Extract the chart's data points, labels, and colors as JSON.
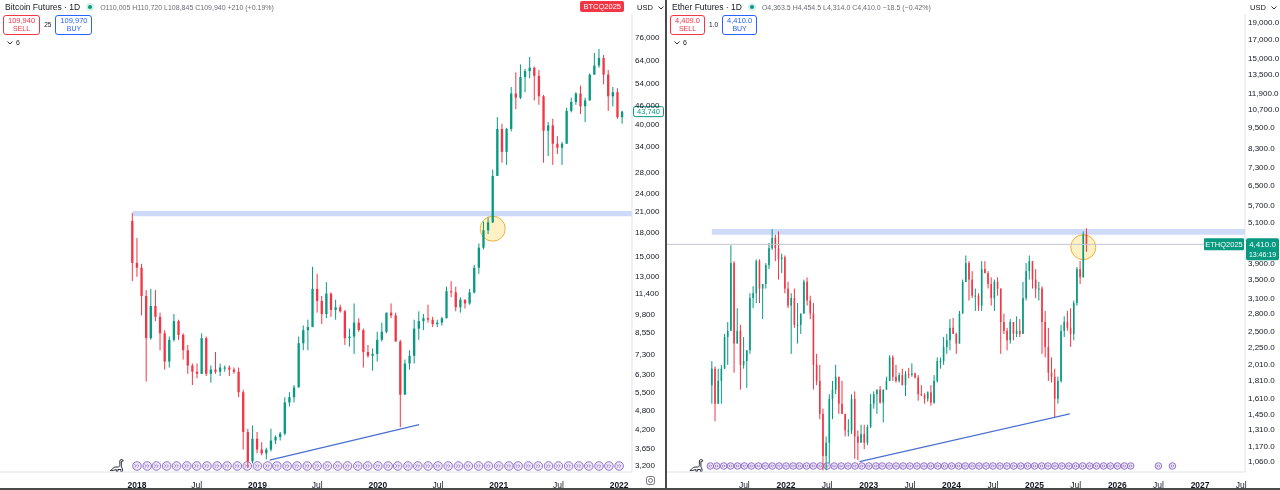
{
  "chart_data": [
    {
      "type": "candlestick",
      "title": "Bitcoin Futures · 1D",
      "subtitle": "O110,005 H110,720 L108,845 C109,940 +210 (+0.19%)",
      "ylabel": "USD",
      "x": [
        "2017-12-18",
        "2018-01-01",
        "2018-01-15",
        "2018-01-29",
        "2018-02-12",
        "2018-02-26",
        "2018-03-12",
        "2018-03-26",
        "2018-04-09",
        "2018-04-23",
        "2018-05-07",
        "2018-05-21",
        "2018-06-04",
        "2018-06-18",
        "2018-07-02",
        "2018-07-16",
        "2018-07-30",
        "2018-08-13",
        "2018-08-27",
        "2018-09-10",
        "2018-09-24",
        "2018-10-08",
        "2018-10-22",
        "2018-11-05",
        "2018-11-19",
        "2018-12-03",
        "2018-12-17",
        "2018-12-31",
        "2019-01-14",
        "2019-01-28",
        "2019-02-11",
        "2019-02-25",
        "2019-03-11",
        "2019-03-25",
        "2019-04-08",
        "2019-04-22",
        "2019-05-06",
        "2019-05-20",
        "2019-06-03",
        "2019-06-17",
        "2019-07-01",
        "2019-07-15",
        "2019-07-29",
        "2019-08-12",
        "2019-08-26",
        "2019-09-09",
        "2019-09-23",
        "2019-10-07",
        "2019-10-21",
        "2019-11-04",
        "2019-11-18",
        "2019-12-02",
        "2019-12-16",
        "2019-12-30",
        "2020-01-13",
        "2020-01-27",
        "2020-02-10",
        "2020-02-24",
        "2020-03-09",
        "2020-03-23",
        "2020-04-06",
        "2020-04-20",
        "2020-05-04",
        "2020-05-18",
        "2020-06-01",
        "2020-06-15",
        "2020-06-29",
        "2020-07-13",
        "2020-07-27",
        "2020-08-10",
        "2020-08-24",
        "2020-09-07",
        "2020-09-21",
        "2020-10-05",
        "2020-10-19",
        "2020-11-02",
        "2020-11-16",
        "2020-11-30",
        "2020-12-14",
        "2020-12-28",
        "2021-01-11",
        "2021-01-25",
        "2021-02-08",
        "2021-02-22",
        "2021-03-08",
        "2021-03-22",
        "2021-04-05",
        "2021-04-19",
        "2021-05-03",
        "2021-05-17",
        "2021-05-31",
        "2021-06-14",
        "2021-06-28",
        "2021-07-12",
        "2021-07-26",
        "2021-08-09",
        "2021-08-23",
        "2021-09-06",
        "2021-09-20",
        "2021-10-04",
        "2021-10-18",
        "2021-11-01",
        "2021-11-15",
        "2021-11-29",
        "2021-12-13",
        "2021-12-27",
        "2022-01-10"
      ],
      "ohlc": [
        [
          19500,
          20650,
          12500,
          14300
        ],
        [
          14300,
          17200,
          12900,
          13800
        ],
        [
          13800,
          14200,
          9700,
          11200
        ],
        [
          11200,
          11700,
          5950,
          8200
        ],
        [
          8200,
          11800,
          8100,
          10400
        ],
        [
          10400,
          11700,
          9300,
          9600
        ],
        [
          9600,
          9900,
          7500,
          8500
        ],
        [
          8500,
          8700,
          6500,
          6900
        ],
        [
          6900,
          8300,
          6600,
          8100
        ],
        [
          8100,
          9800,
          8000,
          9300
        ],
        [
          9300,
          9400,
          8100,
          8400
        ],
        [
          8400,
          8500,
          7000,
          7500
        ],
        [
          7500,
          7800,
          6300,
          6700
        ],
        [
          6700,
          6800,
          5800,
          6400
        ],
        [
          6400,
          6800,
          6100,
          6300
        ],
        [
          6300,
          8500,
          6300,
          8200
        ],
        [
          8200,
          8300,
          6200,
          6300
        ],
        [
          6300,
          6700,
          5900,
          6500
        ],
        [
          6500,
          7400,
          6300,
          6400
        ],
        [
          6400,
          6800,
          6200,
          6600
        ],
        [
          6600,
          6700,
          6400,
          6600
        ],
        [
          6600,
          6700,
          6200,
          6500
        ],
        [
          6500,
          6600,
          6300,
          6400
        ],
        [
          6400,
          6600,
          5300,
          5500
        ],
        [
          5500,
          5600,
          3600,
          4100
        ],
        [
          4100,
          4200,
          3150,
          3300
        ],
        [
          3300,
          4300,
          3250,
          3900
        ],
        [
          3900,
          4100,
          3500,
          3600
        ],
        [
          3600,
          3800,
          3450,
          3500
        ],
        [
          3500,
          3650,
          3350,
          3600
        ],
        [
          3600,
          4200,
          3550,
          3850
        ],
        [
          3850,
          4000,
          3750,
          3950
        ],
        [
          3950,
          4100,
          3850,
          4050
        ],
        [
          4050,
          5300,
          4000,
          5100
        ],
        [
          5100,
          5500,
          4950,
          5300
        ],
        [
          5300,
          5800,
          5100,
          5700
        ],
        [
          5700,
          8300,
          5700,
          7900
        ],
        [
          7900,
          9000,
          7500,
          8700
        ],
        [
          8700,
          9400,
          7500,
          8900
        ],
        [
          8900,
          13900,
          8900,
          11800
        ],
        [
          11800,
          13200,
          9900,
          10800
        ],
        [
          10800,
          11200,
          9100,
          9800
        ],
        [
          9800,
          12400,
          9500,
          11400
        ],
        [
          11400,
          11500,
          9600,
          10100
        ],
        [
          10100,
          10900,
          9400,
          10300
        ],
        [
          10300,
          10500,
          9900,
          10000
        ],
        [
          10000,
          10100,
          7800,
          8200
        ],
        [
          8200,
          8800,
          7700,
          8300
        ],
        [
          8300,
          10600,
          7300,
          9200
        ],
        [
          9200,
          9500,
          8600,
          8700
        ],
        [
          8700,
          8800,
          6600,
          7400
        ],
        [
          7400,
          7800,
          7100,
          7200
        ],
        [
          7200,
          7600,
          6450,
          7300
        ],
        [
          7300,
          8600,
          6900,
          8100
        ],
        [
          8100,
          9200,
          8000,
          8600
        ],
        [
          8600,
          9900,
          8500,
          9900
        ],
        [
          9900,
          10600,
          9500,
          9700
        ],
        [
          9700,
          9900,
          8000,
          8000
        ],
        [
          8000,
          8100,
          4250,
          5400
        ],
        [
          5400,
          7000,
          5400,
          6800
        ],
        [
          6800,
          7500,
          6500,
          7200
        ],
        [
          7200,
          9400,
          6800,
          8800
        ],
        [
          8800,
          10000,
          8100,
          9300
        ],
        [
          9300,
          9800,
          8700,
          9500
        ],
        [
          9500,
          10500,
          9200,
          9400
        ],
        [
          9400,
          9600,
          8900,
          9100
        ],
        [
          9100,
          9400,
          8900,
          9200
        ],
        [
          9200,
          9600,
          9000,
          9500
        ],
        [
          9500,
          12000,
          9500,
          11600
        ],
        [
          11600,
          12500,
          11100,
          11500
        ],
        [
          11500,
          12000,
          10000,
          10300
        ],
        [
          10300,
          11100,
          9900,
          10900
        ],
        [
          10900,
          10900,
          10200,
          10600
        ],
        [
          10600,
          11800,
          10500,
          11500
        ],
        [
          11500,
          14100,
          11400,
          13800
        ],
        [
          13800,
          16500,
          13200,
          16000
        ],
        [
          16000,
          19400,
          15800,
          18200
        ],
        [
          18200,
          20000,
          17700,
          19300
        ],
        [
          19300,
          28500,
          19200,
          27200
        ],
        [
          27200,
          42000,
          27200,
          38500
        ],
        [
          38500,
          40000,
          30000,
          32500
        ],
        [
          32500,
          38800,
          29500,
          38500
        ],
        [
          38500,
          52500,
          37800,
          50000
        ],
        [
          50000,
          58500,
          44500,
          48500
        ],
        [
          48500,
          62000,
          48000,
          56500
        ],
        [
          56500,
          60000,
          50500,
          59000
        ],
        [
          59000,
          65500,
          56000,
          60500
        ],
        [
          60500,
          61000,
          47500,
          57000
        ],
        [
          57000,
          59500,
          46000,
          49000
        ],
        [
          49000,
          49500,
          30000,
          38000
        ],
        [
          38000,
          40500,
          31500,
          39500
        ],
        [
          39500,
          41500,
          29500,
          34500
        ],
        [
          34500,
          36500,
          32000,
          33500
        ],
        [
          33500,
          35000,
          29500,
          34500
        ],
        [
          34500,
          45000,
          34500,
          44000
        ],
        [
          44000,
          48500,
          43500,
          47000
        ],
        [
          47000,
          50500,
          46000,
          50000
        ],
        [
          50000,
          53000,
          43000,
          45500
        ],
        [
          45500,
          48500,
          40500,
          47500
        ],
        [
          47500,
          58000,
          47500,
          57500
        ],
        [
          57500,
          67500,
          57500,
          61500
        ],
        [
          61500,
          69500,
          60500,
          65000
        ],
        [
          65000,
          66500,
          53500,
          57500
        ],
        [
          57500,
          59500,
          44000,
          49000
        ],
        [
          49000,
          52500,
          45500,
          50500
        ],
        [
          50500,
          52000,
          41500,
          42000
        ],
        [
          42000,
          44000,
          40000,
          43740
        ]
      ],
      "xlim": [
        "2016-11-12",
        "2022-02-09"
      ],
      "xticks": [
        {
          "value": "2018-01-01",
          "label": "2018"
        },
        {
          "value": "2018-07-01",
          "label": "Jul"
        },
        {
          "value": "2019-01-01",
          "label": "2019"
        },
        {
          "value": "2019-07-01",
          "label": "Jul"
        },
        {
          "value": "2020-01-01",
          "label": "2020"
        },
        {
          "value": "2020-07-01",
          "label": "Jul"
        },
        {
          "value": "2021-01-01",
          "label": "2021"
        },
        {
          "value": "2021-07-01",
          "label": "Jul"
        },
        {
          "value": "2022-01-01",
          "label": "2022"
        }
      ],
      "ylim": [
        3050,
        90000
      ],
      "yticks": [
        {
          "value": 3200,
          "label": "3,200"
        },
        {
          "value": 3650,
          "label": "3,650"
        },
        {
          "value": 4200,
          "label": "4,200"
        },
        {
          "value": 4800,
          "label": "4,800"
        },
        {
          "value": 5500,
          "label": "5,500"
        },
        {
          "value": 6300,
          "label": "6,300"
        },
        {
          "value": 7300,
          "label": "7,300"
        },
        {
          "value": 8550,
          "label": "8,550"
        },
        {
          "value": 9800,
          "label": "9,800"
        },
        {
          "value": 11400,
          "label": "11,400"
        },
        {
          "value": 13000,
          "label": "13,000"
        },
        {
          "value": 15000,
          "label": "15,000"
        },
        {
          "value": 18000,
          "label": "18,000"
        },
        {
          "value": 21000,
          "label": "21,000"
        },
        {
          "value": 24000,
          "label": "24,000"
        },
        {
          "value": 28000,
          "label": "28,000"
        },
        {
          "value": 34000,
          "label": "34,000"
        },
        {
          "value": 40000,
          "label": "40,000"
        },
        {
          "value": 46000,
          "label": "46,000"
        },
        {
          "value": 54000,
          "label": "54,000"
        },
        {
          "value": 64000,
          "label": "64,000"
        },
        {
          "value": 76000,
          "label": "76,000"
        }
      ],
      "log": true,
      "bands": [
        {
          "axis": "y",
          "from": 20200,
          "to": 21000,
          "color": "#c5d3f8"
        }
      ],
      "series": [
        {
          "type": "line",
          "x": [
            "2019-02-07",
            "2020-05-05"
          ],
          "values": [
            3330,
            4330
          ],
          "color": "#4a6fd1"
        }
      ],
      "annotations": [
        "109,940",
        "SELL",
        "25",
        "109,970",
        "BUY",
        "6",
        "BTCQ2025",
        {
          "text": "43,740",
          "y": 43740
        }
      ]
    },
    {
      "type": "candlestick",
      "title": "Ether Futures · 1D",
      "subtitle": "O4,363.5 H4,454.5 L4,314.0 C4,410.0 −18.5 (−0.42%)",
      "ylabel": "USD",
      "x": [
        "2021-02-08",
        "2021-02-22",
        "2021-03-08",
        "2021-03-22",
        "2021-04-05",
        "2021-04-19",
        "2021-05-03",
        "2021-05-17",
        "2021-05-31",
        "2021-06-14",
        "2021-06-28",
        "2021-07-12",
        "2021-07-26",
        "2021-08-09",
        "2021-08-23",
        "2021-09-06",
        "2021-09-20",
        "2021-10-04",
        "2021-10-18",
        "2021-11-01",
        "2021-11-15",
        "2021-11-29",
        "2021-12-13",
        "2021-12-27",
        "2022-01-10",
        "2022-01-24",
        "2022-02-07",
        "2022-02-21",
        "2022-03-07",
        "2022-03-21",
        "2022-04-04",
        "2022-04-18",
        "2022-05-02",
        "2022-05-16",
        "2022-05-30",
        "2022-06-13",
        "2022-06-27",
        "2022-07-11",
        "2022-07-25",
        "2022-08-08",
        "2022-08-22",
        "2022-09-05",
        "2022-09-19",
        "2022-10-03",
        "2022-10-17",
        "2022-10-31",
        "2022-11-14",
        "2022-11-28",
        "2022-12-12",
        "2022-12-26",
        "2023-01-09",
        "2023-01-23",
        "2023-02-06",
        "2023-02-20",
        "2023-03-06",
        "2023-03-20",
        "2023-04-03",
        "2023-04-17",
        "2023-05-01",
        "2023-05-15",
        "2023-05-29",
        "2023-06-12",
        "2023-06-26",
        "2023-07-10",
        "2023-07-24",
        "2023-08-07",
        "2023-08-21",
        "2023-09-04",
        "2023-09-18",
        "2023-10-02",
        "2023-10-16",
        "2023-10-30",
        "2023-11-13",
        "2023-11-27",
        "2023-12-11",
        "2023-12-25",
        "2024-01-08",
        "2024-01-22",
        "2024-02-05",
        "2024-02-19",
        "2024-03-04",
        "2024-03-18",
        "2024-04-01",
        "2024-04-15",
        "2024-04-29",
        "2024-05-13",
        "2024-05-27",
        "2024-06-10",
        "2024-06-24",
        "2024-07-08",
        "2024-07-22",
        "2024-08-05",
        "2024-08-19",
        "2024-09-02",
        "2024-09-16",
        "2024-09-30",
        "2024-10-14",
        "2024-10-28",
        "2024-11-11",
        "2024-11-25",
        "2024-12-09",
        "2024-12-23",
        "2025-01-06",
        "2025-01-20",
        "2025-02-03",
        "2025-02-17",
        "2025-03-03",
        "2025-03-17",
        "2025-03-31",
        "2025-04-14",
        "2025-04-28",
        "2025-05-12",
        "2025-05-26",
        "2025-06-09",
        "2025-06-23",
        "2025-07-07",
        "2025-07-21",
        "2025-08-04",
        "2025-08-18"
      ],
      "ohlc": [
        [
          1750,
          2050,
          1550,
          1950
        ],
        [
          1950,
          1980,
          1380,
          1550
        ],
        [
          1550,
          1950,
          1550,
          1800
        ],
        [
          1800,
          2000,
          1550,
          1950
        ],
        [
          1950,
          2450,
          1950,
          2400
        ],
        [
          2400,
          2650,
          2000,
          2500
        ],
        [
          2500,
          4380,
          2500,
          3900
        ],
        [
          3900,
          3950,
          1900,
          2300
        ],
        [
          2300,
          2900,
          2300,
          2500
        ],
        [
          2500,
          2600,
          1700,
          2000
        ],
        [
          2000,
          2400,
          1950,
          2050
        ],
        [
          2050,
          2200,
          1720,
          2200
        ],
        [
          2200,
          3200,
          2150,
          3100
        ],
        [
          3100,
          3350,
          2900,
          3200
        ],
        [
          3200,
          4000,
          3000,
          3950
        ],
        [
          3950,
          4000,
          3000,
          3300
        ],
        [
          3300,
          3400,
          2700,
          3400
        ],
        [
          3400,
          3900,
          3300,
          3850
        ],
        [
          3850,
          4450,
          3750,
          4300
        ],
        [
          4300,
          4870,
          4250,
          4600
        ],
        [
          4600,
          4700,
          3950,
          4300
        ],
        [
          4300,
          4800,
          3500,
          4000
        ],
        [
          4000,
          4150,
          3650,
          4050
        ],
        [
          4050,
          4100,
          3200,
          3300
        ],
        [
          3300,
          3450,
          2900,
          2950
        ],
        [
          2950,
          3200,
          2150,
          3100
        ],
        [
          3100,
          3300,
          2550,
          2600
        ],
        [
          2600,
          3000,
          2300,
          2600
        ],
        [
          2600,
          2800,
          2450,
          2800
        ],
        [
          2800,
          3500,
          2800,
          3450
        ],
        [
          3450,
          3550,
          2950,
          3050
        ],
        [
          3050,
          3150,
          2700,
          2800
        ],
        [
          2800,
          3000,
          1700,
          2000
        ],
        [
          2000,
          2150,
          1750,
          1800
        ],
        [
          1800,
          2000,
          1400,
          1450
        ],
        [
          1450,
          1500,
          1000,
          1100
        ],
        [
          1100,
          1250,
          1000,
          1200
        ],
        [
          1200,
          1650,
          1050,
          1600
        ],
        [
          1600,
          1800,
          1400,
          1700
        ],
        [
          1700,
          2000,
          1650,
          1850
        ],
        [
          1850,
          1850,
          1450,
          1550
        ],
        [
          1550,
          1800,
          1450,
          1450
        ],
        [
          1450,
          1450,
          1250,
          1300
        ],
        [
          1300,
          1400,
          1250,
          1300
        ],
        [
          1300,
          1650,
          1270,
          1600
        ],
        [
          1600,
          1680,
          1080,
          1250
        ],
        [
          1250,
          1300,
          1070,
          1200
        ],
        [
          1200,
          1350,
          1200,
          1270
        ],
        [
          1270,
          1350,
          1150,
          1200
        ],
        [
          1200,
          1350,
          1180,
          1330
        ],
        [
          1330,
          1650,
          1320,
          1550
        ],
        [
          1550,
          1680,
          1500,
          1650
        ],
        [
          1650,
          1700,
          1450,
          1700
        ],
        [
          1700,
          1740,
          1550,
          1560
        ],
        [
          1560,
          1700,
          1370,
          1700
        ],
        [
          1700,
          1850,
          1700,
          1800
        ],
        [
          1800,
          2130,
          1800,
          2100
        ],
        [
          2100,
          2130,
          1800,
          1850
        ],
        [
          1850,
          2000,
          1780,
          1800
        ],
        [
          1800,
          1900,
          1780,
          1870
        ],
        [
          1870,
          1950,
          1750,
          1750
        ],
        [
          1750,
          1920,
          1630,
          1880
        ],
        [
          1880,
          1960,
          1830,
          1870
        ],
        [
          1870,
          2020,
          1850,
          1890
        ],
        [
          1890,
          1900,
          1830,
          1840
        ],
        [
          1840,
          1870,
          1580,
          1650
        ],
        [
          1650,
          1750,
          1630,
          1640
        ],
        [
          1640,
          1660,
          1550,
          1600
        ],
        [
          1600,
          1680,
          1570,
          1670
        ],
        [
          1670,
          1750,
          1530,
          1560
        ],
        [
          1560,
          1870,
          1550,
          1800
        ],
        [
          1800,
          2100,
          1780,
          2050
        ],
        [
          2050,
          2100,
          1950,
          2050
        ],
        [
          2050,
          2400,
          2000,
          2250
        ],
        [
          2250,
          2450,
          2150,
          2350
        ],
        [
          2350,
          2700,
          2200,
          2550
        ],
        [
          2550,
          2720,
          2450,
          2450
        ],
        [
          2450,
          2470,
          2150,
          2300
        ],
        [
          2300,
          2850,
          2300,
          2800
        ],
        [
          2800,
          3500,
          2800,
          3450
        ],
        [
          3450,
          4100,
          3450,
          3900
        ],
        [
          3900,
          3950,
          3050,
          3500
        ],
        [
          3500,
          3700,
          3100,
          3150
        ],
        [
          3150,
          3300,
          2850,
          3150
        ],
        [
          3150,
          3200,
          2850,
          2950
        ],
        [
          2950,
          3950,
          2850,
          3750
        ],
        [
          3750,
          3950,
          3650,
          3650
        ],
        [
          3650,
          3700,
          3300,
          3400
        ],
        [
          3400,
          3550,
          2950,
          3100
        ],
        [
          3100,
          3500,
          2850,
          3450
        ],
        [
          3450,
          3550,
          3150,
          3300
        ],
        [
          3300,
          3300,
          2150,
          2650
        ],
        [
          2650,
          2800,
          2450,
          2500
        ],
        [
          2500,
          2550,
          2200,
          2350
        ],
        [
          2350,
          2700,
          2300,
          2650
        ],
        [
          2650,
          2650,
          2350,
          2450
        ],
        [
          2450,
          2750,
          2400,
          2500
        ],
        [
          2500,
          2700,
          2400,
          2450
        ],
        [
          2450,
          3450,
          2450,
          3100
        ],
        [
          3100,
          3900,
          3050,
          3700
        ],
        [
          3700,
          4100,
          3500,
          3950
        ],
        [
          3950,
          3950,
          3300,
          3500
        ],
        [
          3500,
          3750,
          3100,
          3300
        ],
        [
          3300,
          3450,
          3050,
          3300
        ],
        [
          3300,
          3350,
          2150,
          2650
        ],
        [
          2650,
          2850,
          2100,
          2250
        ],
        [
          2250,
          2550,
          1800,
          1900
        ],
        [
          1900,
          2100,
          1780,
          1850
        ],
        [
          1850,
          1950,
          1420,
          1600
        ],
        [
          1600,
          1850,
          1550,
          1800
        ],
        [
          1800,
          2600,
          1780,
          2500
        ],
        [
          2500,
          2750,
          2400,
          2650
        ],
        [
          2650,
          2850,
          2500,
          2550
        ],
        [
          2550,
          2900,
          2250,
          2450
        ],
        [
          2450,
          3050,
          2350,
          3000
        ],
        [
          3000,
          3800,
          2950,
          3750
        ],
        [
          3750,
          3950,
          3400,
          3550
        ],
        [
          3550,
          4800,
          3550,
          4700
        ],
        [
          4700,
          4900,
          4200,
          4410
        ]
      ],
      "xlim": [
        "2020-07-25",
        "2027-07-18"
      ],
      "xticks": [
        {
          "value": "2021-07-01",
          "label": "Jul"
        },
        {
          "value": "2022-01-01",
          "label": "2022"
        },
        {
          "value": "2022-07-01",
          "label": "Jul"
        },
        {
          "value": "2023-01-01",
          "label": "2023"
        },
        {
          "value": "2023-07-01",
          "label": "Jul"
        },
        {
          "value": "2024-01-01",
          "label": "2024"
        },
        {
          "value": "2024-07-01",
          "label": "Jul"
        },
        {
          "value": "2025-01-01",
          "label": "2025"
        },
        {
          "value": "2025-07-01",
          "label": "Jul"
        },
        {
          "value": "2026-01-01",
          "label": "2026"
        },
        {
          "value": "2026-07-01",
          "label": "Jul"
        },
        {
          "value": "2027-01-01",
          "label": "2027"
        },
        {
          "value": "2027-07-01",
          "label": "Jul"
        }
      ],
      "ylim": [
        990,
        20000
      ],
      "yticks": [
        {
          "value": 1060,
          "label": "1,060.0"
        },
        {
          "value": 1170,
          "label": "1,170.0"
        },
        {
          "value": 1310,
          "label": "1,310.0"
        },
        {
          "value": 1450,
          "label": "1,450.0"
        },
        {
          "value": 1610,
          "label": "1,610.0"
        },
        {
          "value": 1810,
          "label": "1,810.0"
        },
        {
          "value": 2010,
          "label": "2,010.0"
        },
        {
          "value": 2250,
          "label": "2,250.0"
        },
        {
          "value": 2500,
          "label": "2,500.0"
        },
        {
          "value": 2800,
          "label": "2,800.0"
        },
        {
          "value": 3100,
          "label": "3,100.0"
        },
        {
          "value": 3500,
          "label": "3,500.0"
        },
        {
          "value": 3900,
          "label": "3,900.0"
        },
        {
          "value": 5100,
          "label": "5,100.0"
        },
        {
          "value": 5700,
          "label": "5,700.0"
        },
        {
          "value": 6500,
          "label": "6,500.0"
        },
        {
          "value": 7300,
          "label": "7,300.0"
        },
        {
          "value": 8300,
          "label": "8,300.0"
        },
        {
          "value": 9500,
          "label": "9,500.0"
        },
        {
          "value": 10700,
          "label": "10,700.0"
        },
        {
          "value": 11900,
          "label": "11,900.0"
        },
        {
          "value": 13500,
          "label": "13,500.0"
        },
        {
          "value": 15000,
          "label": "15,000.0"
        },
        {
          "value": 17000,
          "label": "17,000.0"
        },
        {
          "value": 19000,
          "label": "19,000.0"
        }
      ],
      "log": true,
      "bands": [
        {
          "axis": "y",
          "from": 4700,
          "to": 4880,
          "color": "#c5d3f8"
        }
      ],
      "ref_lines": [
        {
          "axis": "y",
          "value": 4410,
          "label": "4,410.0",
          "color": "#c3c6ce"
        }
      ],
      "series": [
        {
          "type": "line",
          "x": [
            "2022-11-21",
            "2025-06-05"
          ],
          "values": [
            1060,
            1450
          ],
          "color": "#4a6fd1"
        }
      ],
      "annotations": [
        "4,409.0",
        "SELL",
        "1.0",
        "4,410.0",
        "BUY",
        "6",
        "13:46:19",
        {
          "text": "ETHQ2025",
          "y": 4410
        }
      ]
    }
  ]
}
